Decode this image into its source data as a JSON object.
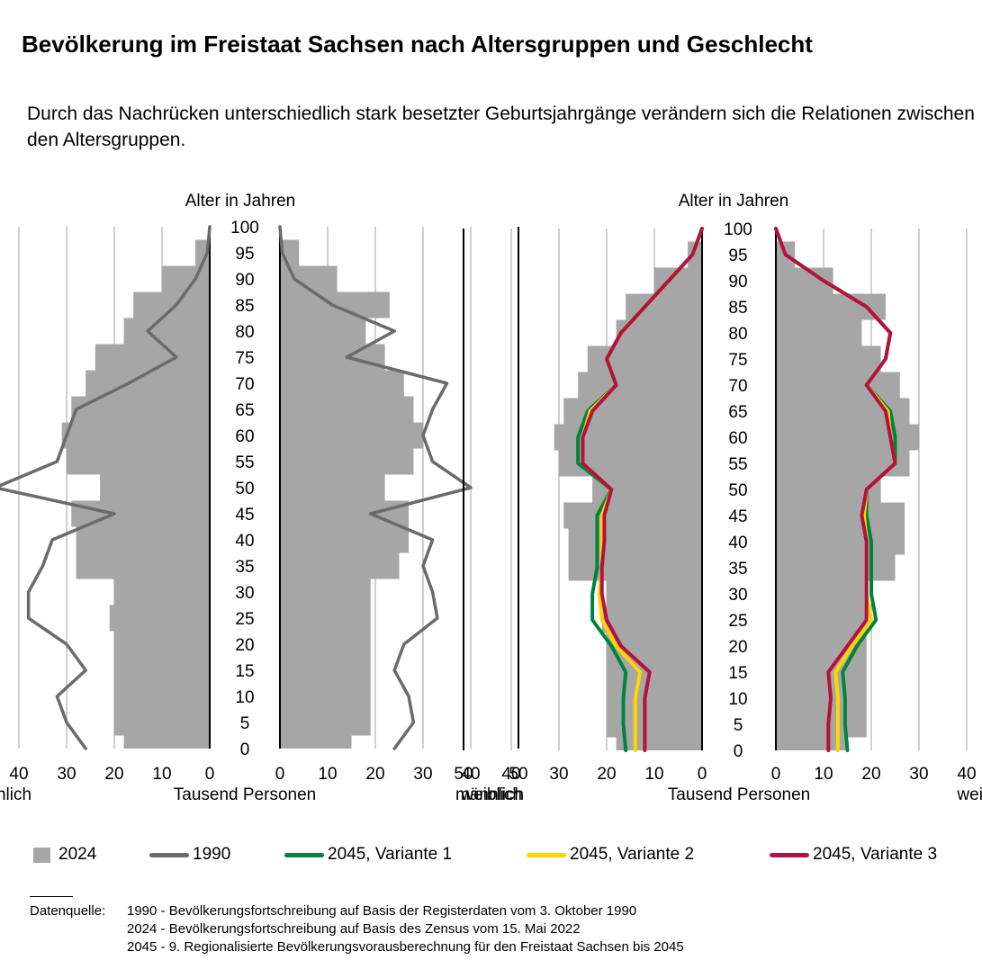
{
  "title": "Bevölkerung im Freistaat Sachsen nach Altersgruppen und Geschlecht",
  "subtitle": "Durch das Nachrücken unterschiedlich stark besetzter Geburtsjahrgänge verändern sich die Relationen zwischen den Altersgruppen.",
  "legend": [
    {
      "label": "2024",
      "kind": "box",
      "color": "#a6a6a6"
    },
    {
      "label": "1990",
      "kind": "line",
      "color": "#6b6b6b"
    },
    {
      "label": "2045, Variante 1",
      "kind": "line",
      "color": "#00843d"
    },
    {
      "label": "2045, Variante 2",
      "kind": "line",
      "color": "#ffd400"
    },
    {
      "label": "2045, Variante 3",
      "kind": "line",
      "color": "#b3123f"
    }
  ],
  "source": {
    "label": "Datenquelle:",
    "lines": [
      "1990 - Bevölkerungsfortschreibung auf Basis der Registerdaten vom 3. Oktober 1990",
      "2024 - Bevölkerungsfortschreibung auf Basis des Zensus vom 15. Mai 2022",
      "2045 - 9. Regionalisierte Bevölkerungsvorausberechnung für den Freistaat Sachsen bis 2045"
    ]
  },
  "chart_data": [
    {
      "type": "population-pyramid",
      "age_axis_label": "Alter in Jahren",
      "x_axis_label": "Tausend Personen",
      "male_label": "männlich",
      "female_label": "weiblich",
      "age_ticks": [
        0,
        5,
        10,
        15,
        20,
        25,
        30,
        35,
        40,
        45,
        50,
        55,
        60,
        65,
        70,
        75,
        80,
        85,
        90,
        95,
        100
      ],
      "x_ticks": [
        0,
        10,
        20,
        30,
        40,
        50
      ],
      "xlim": [
        0,
        50
      ],
      "ylim": [
        0,
        100
      ],
      "age_step": 5,
      "ages": [
        0,
        5,
        10,
        15,
        20,
        25,
        30,
        35,
        40,
        45,
        50,
        55,
        60,
        65,
        70,
        75,
        80,
        85,
        90,
        95,
        100
      ],
      "series": [
        {
          "name": "2024",
          "kind": "bars",
          "male": [
            18,
            20,
            20,
            20,
            20,
            21,
            20,
            28,
            28,
            29,
            23,
            30,
            31,
            29,
            26,
            24,
            18,
            16,
            10,
            3,
            0
          ],
          "female": [
            15,
            19,
            19,
            19,
            19,
            19,
            19,
            25,
            27,
            27,
            22,
            28,
            30,
            28,
            26,
            22,
            18,
            23,
            12,
            4,
            0
          ]
        },
        {
          "name": "1990",
          "kind": "line",
          "male": [
            26,
            30,
            32,
            26,
            30,
            38,
            38,
            35,
            33,
            20,
            45,
            32,
            30,
            28,
            17,
            7,
            13,
            7,
            3,
            0.5,
            0
          ],
          "female": [
            24,
            28,
            27,
            24,
            26,
            33,
            32,
            30,
            32,
            19,
            40,
            32,
            30,
            32,
            35,
            14,
            24,
            11,
            3,
            0.5,
            0
          ]
        }
      ]
    },
    {
      "type": "population-pyramid",
      "age_axis_label": "Alter in Jahren",
      "x_axis_label": "Tausend Personen",
      "male_label": "männlich",
      "female_label": "weiblich",
      "age_ticks": [
        0,
        5,
        10,
        15,
        20,
        25,
        30,
        35,
        40,
        45,
        50,
        55,
        60,
        65,
        70,
        75,
        80,
        85,
        90,
        95,
        100
      ],
      "x_ticks": [
        0,
        10,
        20,
        30,
        40,
        50
      ],
      "xlim": [
        0,
        50
      ],
      "ylim": [
        0,
        100
      ],
      "age_step": 5,
      "ages": [
        0,
        5,
        10,
        15,
        20,
        25,
        30,
        35,
        40,
        45,
        50,
        55,
        60,
        65,
        70,
        75,
        80,
        85,
        90,
        95,
        100
      ],
      "series": [
        {
          "name": "2024",
          "kind": "bars",
          "male": [
            18,
            20,
            20,
            20,
            20,
            21,
            20,
            28,
            28,
            29,
            23,
            30,
            31,
            29,
            26,
            24,
            18,
            16,
            10,
            3,
            0
          ],
          "female": [
            15,
            19,
            19,
            19,
            19,
            19,
            19,
            25,
            27,
            27,
            22,
            28,
            30,
            28,
            26,
            22,
            18,
            23,
            12,
            4,
            0
          ]
        },
        {
          "name": "2045, Variante 1",
          "kind": "line",
          "color": "#00843d",
          "male": [
            16,
            16.5,
            16.5,
            16,
            19,
            23,
            23,
            22,
            22,
            22,
            19,
            26,
            26,
            24,
            18,
            20,
            17,
            12,
            7,
            2,
            0
          ],
          "female": [
            15,
            14.5,
            14.5,
            14,
            17,
            21,
            20,
            20,
            20,
            19,
            19,
            25,
            25,
            24,
            19,
            23,
            24,
            19,
            10,
            2,
            0
          ]
        },
        {
          "name": "2045, Variante 2",
          "kind": "line",
          "color": "#ffd400",
          "male": [
            14,
            14,
            14,
            13,
            18,
            21,
            21.5,
            21,
            21,
            21,
            19,
            25,
            25,
            23.5,
            18,
            20,
            17,
            12,
            7,
            2,
            0
          ],
          "female": [
            13,
            13,
            13,
            12.5,
            16,
            20,
            19,
            19,
            19,
            18.5,
            19,
            25,
            24,
            23.5,
            19,
            23,
            24,
            19,
            10,
            2,
            0
          ]
        },
        {
          "name": "2045, Variante 3",
          "kind": "line",
          "color": "#b3123f",
          "male": [
            12,
            12,
            12,
            11,
            17,
            20,
            21,
            21,
            20.5,
            20.5,
            19,
            25,
            25,
            23,
            18,
            20,
            17,
            12,
            7,
            2,
            0
          ],
          "female": [
            11,
            11,
            11.5,
            11,
            15,
            19,
            19,
            19,
            19,
            18,
            19,
            25,
            24,
            23,
            19,
            23,
            24,
            19,
            10,
            2,
            0
          ]
        }
      ]
    }
  ]
}
